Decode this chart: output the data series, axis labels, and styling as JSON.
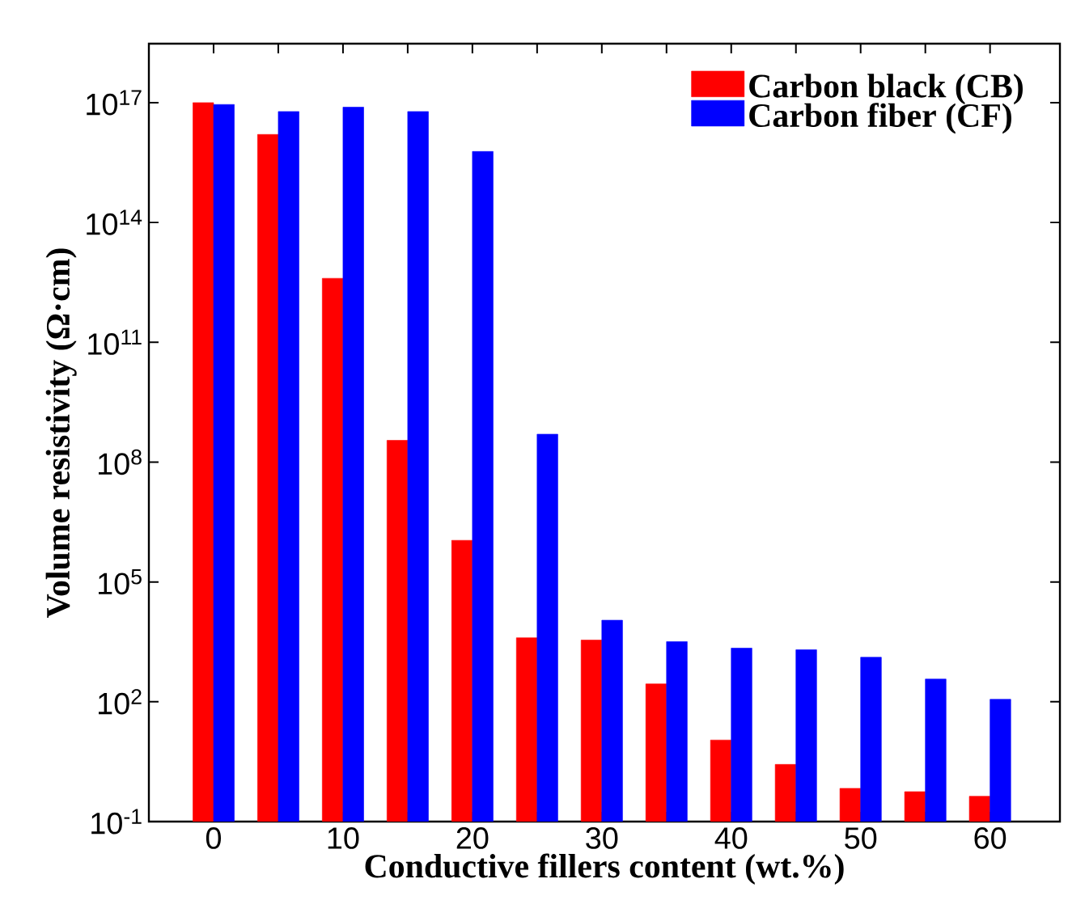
{
  "chart_data": {
    "type": "bar",
    "xlabel": "Conductive fillers content (wt.%)",
    "ylabel": "Volume resistivity (Ω·cm)",
    "x": [
      0,
      5,
      10,
      15,
      20,
      25,
      30,
      35,
      40,
      45,
      50,
      55,
      60
    ],
    "series": [
      {
        "name": "Carbon black (CB)",
        "color": "#ff0000",
        "values": [
          1e+17,
          1.6e+16,
          4000000000000.0,
          350000000.0,
          1100000.0,
          4000.0,
          3500.0,
          280,
          11,
          2.7,
          0.68,
          0.56,
          0.43
        ]
      },
      {
        "name": "Carbon fiber (CF)",
        "color": "#0000ff",
        "values": [
          9e+16,
          6e+16,
          7.7e+16,
          6e+16,
          6000000000000000.0,
          500000000.0,
          11000.0,
          3200.0,
          2200.0,
          2000.0,
          1300.0,
          370,
          115
        ]
      }
    ],
    "xlim": [
      -5,
      65.4
    ],
    "xticks": [
      0,
      {
        "value": 5,
        "label": null
      },
      10,
      {
        "value": 15,
        "label": null
      },
      20,
      {
        "value": 25,
        "label": null
      },
      30,
      {
        "value": 35,
        "label": null
      },
      40,
      {
        "value": 45,
        "label": null
      },
      50,
      {
        "value": 55,
        "label": null
      },
      60
    ],
    "ylim": [
      0.1,
      3e+18
    ],
    "log": "y",
    "yticks": [
      {
        "value": 0.1,
        "label": "10$^{-1}$"
      },
      {
        "value": 100,
        "label": "10$^{2}$"
      },
      {
        "value": 100000.0,
        "label": "10$^{5}$"
      },
      {
        "value": 100000000.0,
        "label": "10$^{8}$"
      },
      {
        "value": 100000000000.0,
        "label": "10$^{11}$"
      },
      {
        "value": 100000000000000.0,
        "label": "10$^{14}$"
      },
      {
        "value": 1e+17,
        "label": "10$^{17}$"
      }
    ],
    "legend": "top right"
  }
}
